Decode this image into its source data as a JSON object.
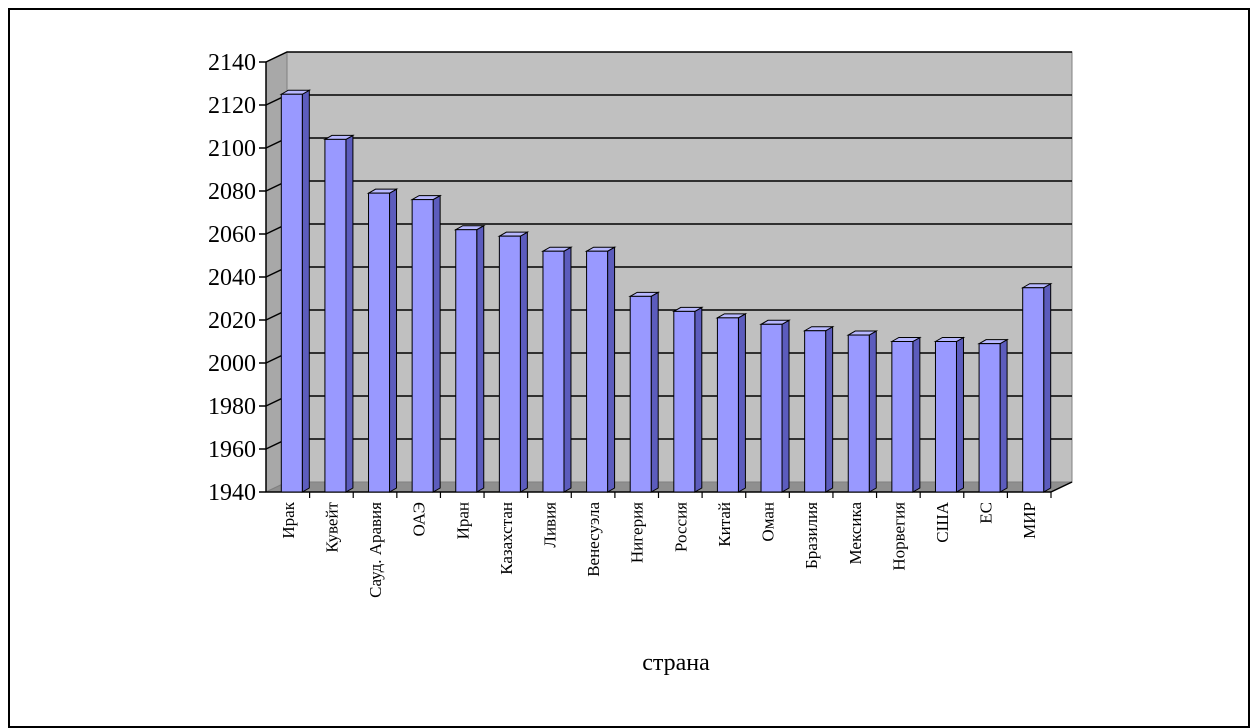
{
  "chart_data": {
    "type": "bar",
    "style": "3d-column",
    "categories": [
      "Ирак",
      "Кувейт",
      "Сауд. Аравия",
      "ОАЭ",
      "Иран",
      "Казахстан",
      "Ливия",
      "Венесуэла",
      "Нигерия",
      "Россия",
      "Китай",
      "Оман",
      "Бразилия",
      "Мексика",
      "Норвегия",
      "США",
      "ЕС",
      "МИР"
    ],
    "values": [
      2125,
      2104,
      2079,
      2076,
      2062,
      2059,
      2052,
      2052,
      2031,
      2024,
      2021,
      2018,
      2015,
      2013,
      2010,
      2010,
      2009,
      2035
    ],
    "title": "",
    "xlabel": "страна",
    "ylabel": "",
    "ylim": [
      1940,
      2140
    ],
    "yticks": [
      1940,
      1960,
      1980,
      2000,
      2020,
      2040,
      2060,
      2080,
      2100,
      2120,
      2140
    ],
    "grid": true,
    "legend": "none",
    "colors": {
      "bar_front": "#9999ff",
      "bar_side": "#5c5cbd",
      "bar_top": "#b8b8ff",
      "wall": "#c0c0c0",
      "gridline": "#000000"
    }
  }
}
